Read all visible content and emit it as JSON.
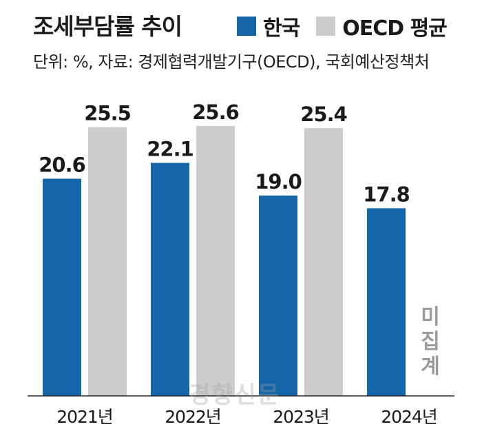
{
  "title": "조세부담률 추이",
  "legend": [
    {
      "name": "한국",
      "color": "#1466a8"
    },
    {
      "name": "OECD 평균",
      "color": "#cccccc"
    }
  ],
  "source": "단위: %, 자료: 경제협력개발기구(OECD), 국회예산정책처",
  "watermark": "경향신문",
  "chart_data": {
    "type": "bar",
    "categories": [
      "2021년",
      "2022년",
      "2023년",
      "2024년"
    ],
    "series": [
      {
        "name": "한국",
        "values": [
          20.6,
          22.1,
          19.0,
          17.8
        ],
        "labels": [
          "20.6",
          "22.1",
          "19.0",
          "17.8"
        ],
        "color": "#1466a8"
      },
      {
        "name": "OECD 평균",
        "values": [
          25.5,
          25.6,
          25.4,
          null
        ],
        "labels": [
          "25.5",
          "25.6",
          "25.4",
          null
        ],
        "color": "#cccccc"
      }
    ],
    "annotation": "미집계",
    "ylim": [
      0,
      25.6
    ],
    "grid": false,
    "legend_position": "top-right"
  }
}
